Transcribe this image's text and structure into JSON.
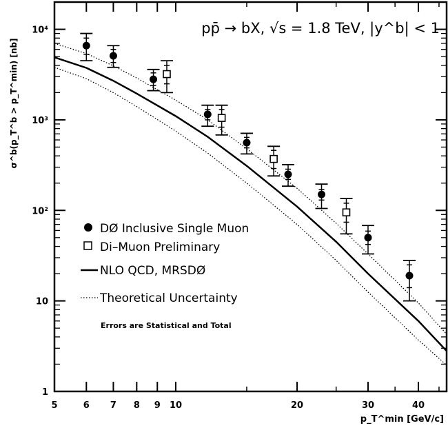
{
  "chart_data": {
    "type": "scatter",
    "title": "pp̄ → bX, √s = 1.8 TeV, |y^b| < 1",
    "xlabel": "p_T^min [GeV/c]",
    "ylabel": "σ^b(p_T^b > p_T^min) [nb]",
    "x_scale": "log",
    "y_scale": "log",
    "xlim": [
      5,
      47
    ],
    "ylim": [
      1,
      20000
    ],
    "x_ticks": [
      {
        "v": 5,
        "label": "5"
      },
      {
        "v": 6,
        "label": "6"
      },
      {
        "v": 7,
        "label": "7"
      },
      {
        "v": 8,
        "label": "8"
      },
      {
        "v": 9,
        "label": "9"
      },
      {
        "v": 10,
        "label": "10"
      },
      {
        "v": 20,
        "label": "20"
      },
      {
        "v": 30,
        "label": "30"
      },
      {
        "v": 40,
        "label": "40"
      }
    ],
    "y_ticks": [
      {
        "v": 1,
        "label": "1"
      },
      {
        "v": 10,
        "label": "10"
      },
      {
        "v": 100,
        "label": "10²"
      },
      {
        "v": 1000,
        "label": "10³"
      },
      {
        "v": 10000,
        "label": "10⁴"
      }
    ],
    "legend": {
      "position": "bottom-left",
      "entries": [
        {
          "symbol": "filled-circle",
          "label": "DØ Inclusive Single Muon"
        },
        {
          "symbol": "open-square",
          "label": "Di–Muon Preliminary"
        },
        {
          "symbol": "solid-line",
          "label": "NLO QCD, MRSDØ"
        },
        {
          "symbol": "dotted-line",
          "label": "Theoretical Uncertainty"
        }
      ],
      "note": "Errors are Statistical and Total"
    },
    "series": [
      {
        "name": "DØ Inclusive Single Muon",
        "marker": "filled-circle",
        "points": [
          {
            "x": 6.0,
            "y": 6600,
            "stat": [
              5300,
              8000
            ],
            "tot": [
              4500,
              9000
            ]
          },
          {
            "x": 7.0,
            "y": 5100,
            "stat": [
              4300,
              6000
            ],
            "tot": [
              3800,
              6600
            ]
          },
          {
            "x": 8.8,
            "y": 2800,
            "stat": [
              2400,
              3300
            ],
            "tot": [
              2100,
              3600
            ]
          },
          {
            "x": 12.0,
            "y": 1150,
            "stat": [
              1000,
              1300
            ],
            "tot": [
              850,
              1450
            ]
          },
          {
            "x": 15.0,
            "y": 560,
            "stat": [
              490,
              640
            ],
            "tot": [
              420,
              710
            ]
          },
          {
            "x": 19.0,
            "y": 250,
            "stat": [
              220,
              285
            ],
            "tot": [
              185,
              320
            ]
          },
          {
            "x": 23.0,
            "y": 150,
            "stat": [
              130,
              170
            ],
            "tot": [
              105,
              195
            ]
          },
          {
            "x": 30.0,
            "y": 50,
            "stat": [
              42,
              59
            ],
            "tot": [
              33,
              68
            ]
          },
          {
            "x": 38.0,
            "y": 19,
            "stat": [
              14,
              25
            ],
            "tot": [
              10,
              28
            ]
          }
        ]
      },
      {
        "name": "Di–Muon Preliminary",
        "marker": "open-square",
        "points": [
          {
            "x": 9.5,
            "y": 3200,
            "stat": [
              2500,
              4000
            ],
            "tot": [
              2000,
              4500
            ]
          },
          {
            "x": 13.0,
            "y": 1050,
            "stat": [
              830,
              1300
            ],
            "tot": [
              680,
              1450
            ]
          },
          {
            "x": 17.5,
            "y": 370,
            "stat": [
              290,
              460
            ],
            "tot": [
              240,
              510
            ]
          },
          {
            "x": 26.5,
            "y": 95,
            "stat": [
              74,
              120
            ],
            "tot": [
              55,
              135
            ]
          }
        ]
      }
    ],
    "curves": [
      {
        "name": "NLO QCD, MRSDØ",
        "style": "solid",
        "points": [
          [
            5,
            4900
          ],
          [
            6,
            3750
          ],
          [
            7,
            2700
          ],
          [
            8,
            1950
          ],
          [
            10,
            1100
          ],
          [
            12,
            650
          ],
          [
            15,
            310
          ],
          [
            20,
            110
          ],
          [
            25,
            45
          ],
          [
            30,
            20
          ],
          [
            40,
            6
          ],
          [
            47,
            2.8
          ]
        ]
      },
      {
        "name": "Theoretical Uncertainty (upper)",
        "style": "dotted",
        "points": [
          [
            5,
            7000
          ],
          [
            6,
            5400
          ],
          [
            7,
            3950
          ],
          [
            8,
            2900
          ],
          [
            10,
            1650
          ],
          [
            12,
            1000
          ],
          [
            15,
            480
          ],
          [
            20,
            175
          ],
          [
            25,
            72
          ],
          [
            30,
            33
          ],
          [
            40,
            9.5
          ],
          [
            47,
            4.3
          ]
        ]
      },
      {
        "name": "Theoretical Uncertainty (lower)",
        "style": "dotted",
        "points": [
          [
            5,
            3800
          ],
          [
            6,
            2850
          ],
          [
            7,
            2000
          ],
          [
            8,
            1400
          ],
          [
            10,
            750
          ],
          [
            12,
            430
          ],
          [
            15,
            200
          ],
          [
            20,
            70
          ],
          [
            25,
            28
          ],
          [
            30,
            12.5
          ],
          [
            40,
            3.7
          ],
          [
            47,
            1.95
          ]
        ]
      }
    ]
  }
}
